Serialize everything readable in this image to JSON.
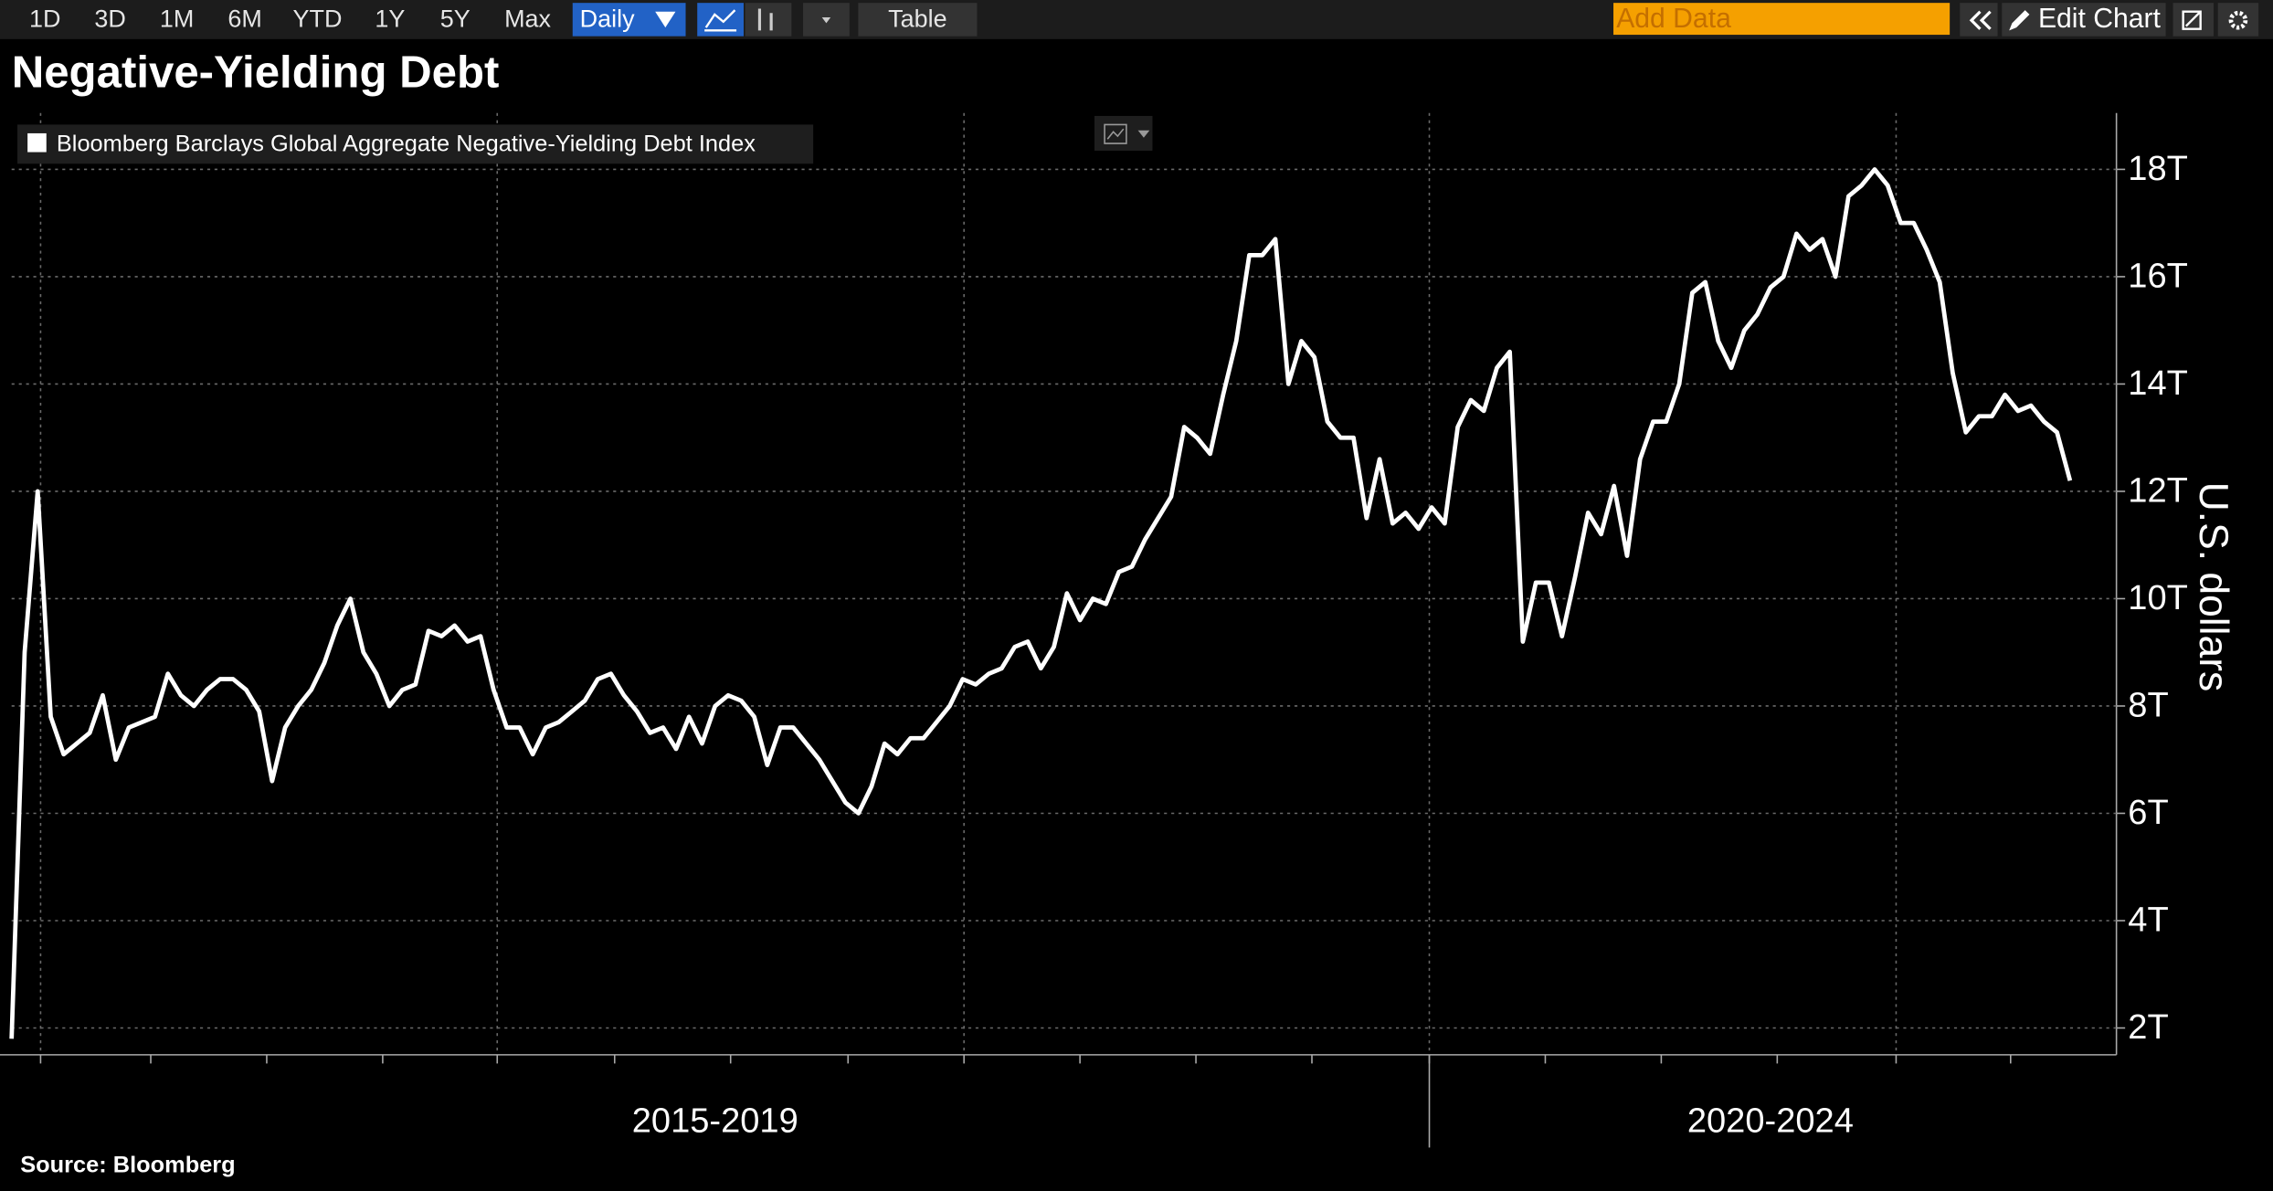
{
  "toolbar": {
    "ranges": [
      "1D",
      "3D",
      "1M",
      "6M",
      "YTD",
      "1Y",
      "5Y",
      "Max"
    ],
    "frequency": "Daily",
    "table": "Table",
    "add_data": "Add Data",
    "edit_chart": "Edit Chart"
  },
  "chart_data": {
    "type": "line",
    "title": "Negative-Yielding Debt",
    "y_label": "U.S. dollars",
    "source": "Source: Bloomberg",
    "grid": true,
    "categories": [
      null,
      null,
      null,
      null,
      null,
      null,
      null,
      null,
      null,
      null,
      null,
      null,
      null,
      null,
      null,
      null,
      null,
      null,
      null,
      null,
      null,
      null,
      null,
      null,
      null,
      null,
      null,
      null,
      null,
      null,
      null,
      null,
      null,
      null,
      null,
      null,
      null,
      null,
      null,
      null,
      null,
      null,
      null,
      null,
      null,
      null,
      null,
      null,
      null,
      null,
      null,
      null,
      null,
      null,
      "2015-2019",
      null,
      null,
      null,
      null,
      null,
      null,
      null,
      null,
      null,
      null,
      null,
      null,
      null,
      null,
      null,
      null,
      null,
      null,
      null,
      null,
      null,
      null,
      null,
      null,
      null,
      null,
      null,
      null,
      null,
      null,
      null,
      null,
      null,
      null,
      null,
      null,
      null,
      null,
      null,
      null,
      null,
      null,
      null,
      null,
      null,
      null,
      null,
      null,
      null,
      null,
      null,
      null,
      null,
      null,
      null,
      null,
      null,
      null,
      null,
      null,
      null,
      null,
      null,
      null,
      null,
      null,
      null,
      null,
      null,
      null,
      null,
      null,
      null,
      null,
      null,
      null,
      null,
      null,
      null,
      null,
      "2020-2024",
      null,
      null,
      null,
      null,
      null,
      null,
      null,
      null,
      null,
      null,
      null,
      null,
      null,
      null,
      null,
      null,
      null,
      null,
      null,
      null,
      null,
      null,
      null
    ],
    "series": [
      {
        "name": "Bloomberg Barclays Global Aggregate Negative-Yielding Debt Index",
        "color": "#ffffff",
        "values": [
          1.8,
          9.0,
          12.0,
          7.8,
          7.1,
          7.3,
          7.5,
          8.2,
          7.0,
          7.6,
          7.7,
          7.8,
          8.6,
          8.2,
          8.0,
          8.3,
          8.5,
          8.5,
          8.3,
          7.9,
          6.6,
          7.6,
          8.0,
          8.3,
          8.8,
          9.5,
          10.0,
          9.0,
          8.6,
          8.0,
          8.3,
          8.4,
          9.4,
          9.3,
          9.5,
          9.2,
          9.3,
          8.3,
          7.6,
          7.6,
          7.1,
          7.6,
          7.7,
          7.9,
          8.1,
          8.5,
          8.6,
          8.2,
          7.9,
          7.5,
          7.6,
          7.2,
          7.8,
          7.3,
          8.0,
          8.2,
          8.1,
          7.8,
          6.9,
          7.6,
          7.6,
          7.3,
          7.0,
          6.6,
          6.2,
          6.0,
          6.5,
          7.3,
          7.1,
          7.4,
          7.4,
          7.7,
          8.0,
          8.5,
          8.4,
          8.6,
          8.7,
          9.1,
          9.2,
          8.7,
          9.1,
          10.1,
          9.6,
          10.0,
          9.9,
          10.5,
          10.6,
          11.1,
          11.5,
          11.9,
          13.2,
          13.0,
          12.7,
          13.8,
          14.8,
          16.4,
          16.4,
          16.7,
          14.0,
          14.8,
          14.5,
          13.3,
          13.0,
          13.0,
          11.5,
          12.6,
          11.4,
          11.6,
          11.3,
          11.7,
          11.4,
          13.2,
          13.7,
          13.5,
          14.3,
          14.6,
          9.2,
          10.3,
          10.3,
          9.3,
          10.4,
          11.6,
          11.2,
          12.1,
          10.8,
          12.6,
          13.3,
          13.3,
          14.0,
          15.7,
          15.9,
          14.8,
          14.3,
          15.0,
          15.3,
          15.8,
          16.0,
          16.8,
          16.5,
          16.7,
          16.0,
          17.5,
          17.7,
          18.0,
          17.7,
          17.0,
          17.0,
          16.5,
          15.9,
          14.2,
          13.1,
          13.4,
          13.4,
          13.8,
          13.5,
          13.6,
          13.3,
          13.1,
          12.2
        ]
      }
    ],
    "ylim": [
      1.5,
      19.05
    ],
    "yticks": [
      {
        "value": 2,
        "label": "2T"
      },
      {
        "value": 4,
        "label": "4T"
      },
      {
        "value": 6,
        "label": "6T"
      },
      {
        "value": 8,
        "label": "8T"
      },
      {
        "value": 10,
        "label": "10T"
      },
      {
        "value": 12,
        "label": "12T"
      },
      {
        "value": 14,
        "label": "14T"
      },
      {
        "value": 16,
        "label": "16T"
      },
      {
        "value": 18,
        "label": "18T"
      }
    ]
  }
}
